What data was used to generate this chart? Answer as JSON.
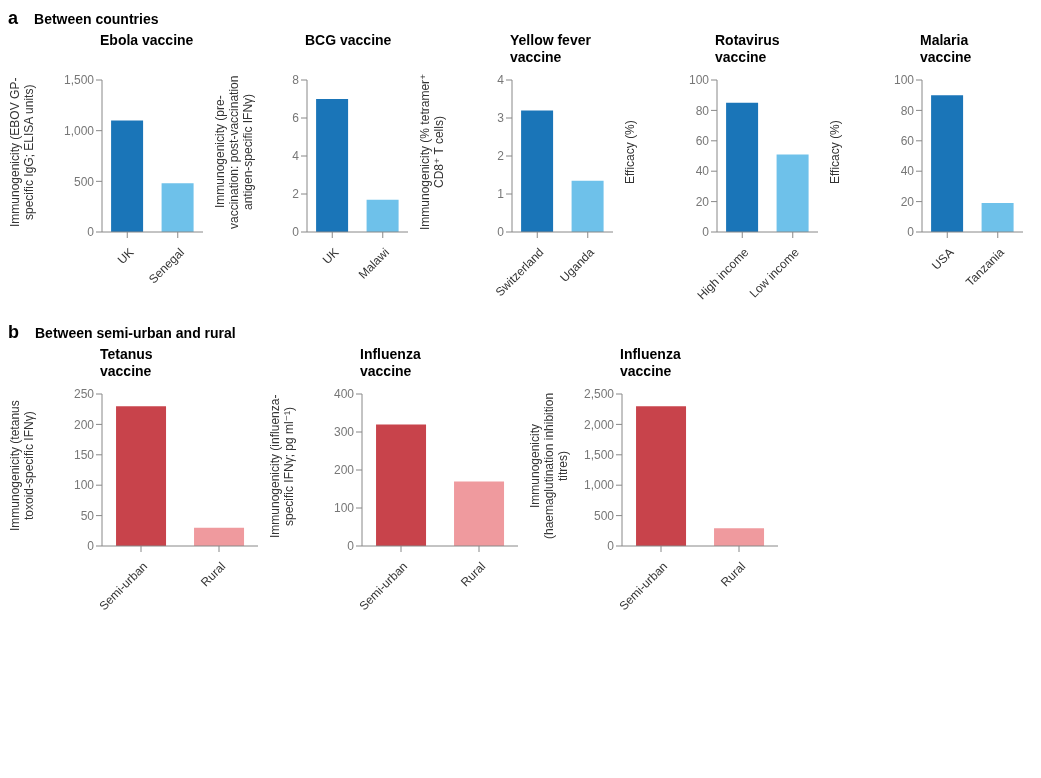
{
  "chart_data": [
    {
      "type": "bar",
      "annotations": [
        "a",
        "Between countries"
      ],
      "title": "Ebola vaccine",
      "ylabel": "Immunogenicity (EBOV GP-specific IgG; ELISA units)",
      "categories": [
        "UK",
        "Senegal"
      ],
      "values": [
        1100,
        480
      ],
      "colors": [
        "#1a75b8",
        "#6ec1ea"
      ],
      "ylim": [
        0,
        1500
      ],
      "yticks": [
        0,
        500,
        {
          "value": 1000,
          "label": "1,000"
        },
        {
          "value": 1500,
          "label": "1,500"
        }
      ]
    },
    {
      "type": "bar",
      "title": "BCG vaccine",
      "ylabel": "Immunogenicity (pre-vaccination: post-vaccination antigen-specific IFNγ)",
      "categories": [
        "UK",
        "Malawi"
      ],
      "values": [
        7,
        1.7
      ],
      "colors": [
        "#1a75b8",
        "#6ec1ea"
      ],
      "ylim": [
        0,
        8
      ],
      "yticks": [
        0,
        2,
        4,
        6,
        8
      ]
    },
    {
      "type": "bar",
      "title": "Yellow fever vaccine",
      "ylabel": "Immunogenicity (% tetramer⁺ CD8⁺ T cells)",
      "categories": [
        "Switzerland",
        "Uganda"
      ],
      "values": [
        3.2,
        1.35
      ],
      "colors": [
        "#1a75b8",
        "#6ec1ea"
      ],
      "ylim": [
        0,
        4
      ],
      "yticks": [
        0,
        1,
        2,
        3,
        4
      ]
    },
    {
      "type": "bar",
      "title": "Rotavirus vaccine",
      "ylabel": "Efficacy (%)",
      "categories": [
        "High income",
        "Low income"
      ],
      "values": [
        85,
        51
      ],
      "colors": [
        "#1a75b8",
        "#6ec1ea"
      ],
      "ylim": [
        0,
        100
      ],
      "yticks": [
        0,
        20,
        40,
        60,
        80,
        100
      ]
    },
    {
      "type": "bar",
      "title": "Malaria vaccine",
      "ylabel": "Efficacy (%)",
      "categories": [
        "USA",
        "Tanzania"
      ],
      "values": [
        90,
        19
      ],
      "colors": [
        "#1a75b8",
        "#6ec1ea"
      ],
      "ylim": [
        0,
        100
      ],
      "yticks": [
        0,
        20,
        40,
        60,
        80,
        100
      ]
    },
    {
      "type": "bar",
      "annotations": [
        "b",
        "Between semi-urban and rural"
      ],
      "title": "Tetanus vaccine",
      "ylabel": "Immunogenicity (tetanus toxoid-specific IFNγ)",
      "categories": [
        "Semi-urban",
        "Rural"
      ],
      "values": [
        230,
        30
      ],
      "colors": [
        "#c8434b",
        "#ef9a9e"
      ],
      "ylim": [
        0,
        250
      ],
      "yticks": [
        0,
        50,
        100,
        150,
        200,
        250
      ]
    },
    {
      "type": "bar",
      "title": "Influenza vaccine",
      "ylabel": "Immunogenicity (influenza-specific IFNγ; pg ml⁻¹)",
      "categories": [
        "Semi-urban",
        "Rural"
      ],
      "values": [
        320,
        170
      ],
      "colors": [
        "#c8434b",
        "#ef9a9e"
      ],
      "ylim": [
        0,
        400
      ],
      "yticks": [
        0,
        100,
        200,
        300,
        400
      ]
    },
    {
      "type": "bar",
      "title": "Influenza vaccine",
      "ylabel": "Immunogenicity (haemaglutination inhibition titres)",
      "categories": [
        "Semi-urban",
        "Rural"
      ],
      "values": [
        2300,
        290
      ],
      "colors": [
        "#c8434b",
        "#ef9a9e"
      ],
      "ylim": [
        0,
        2500
      ],
      "yticks": [
        0,
        500,
        {
          "value": 1000,
          "label": "1,000"
        },
        {
          "value": 1500,
          "label": "1,500"
        },
        {
          "value": 2000,
          "label": "2,000"
        },
        {
          "value": 2500,
          "label": "2,500"
        }
      ]
    }
  ]
}
